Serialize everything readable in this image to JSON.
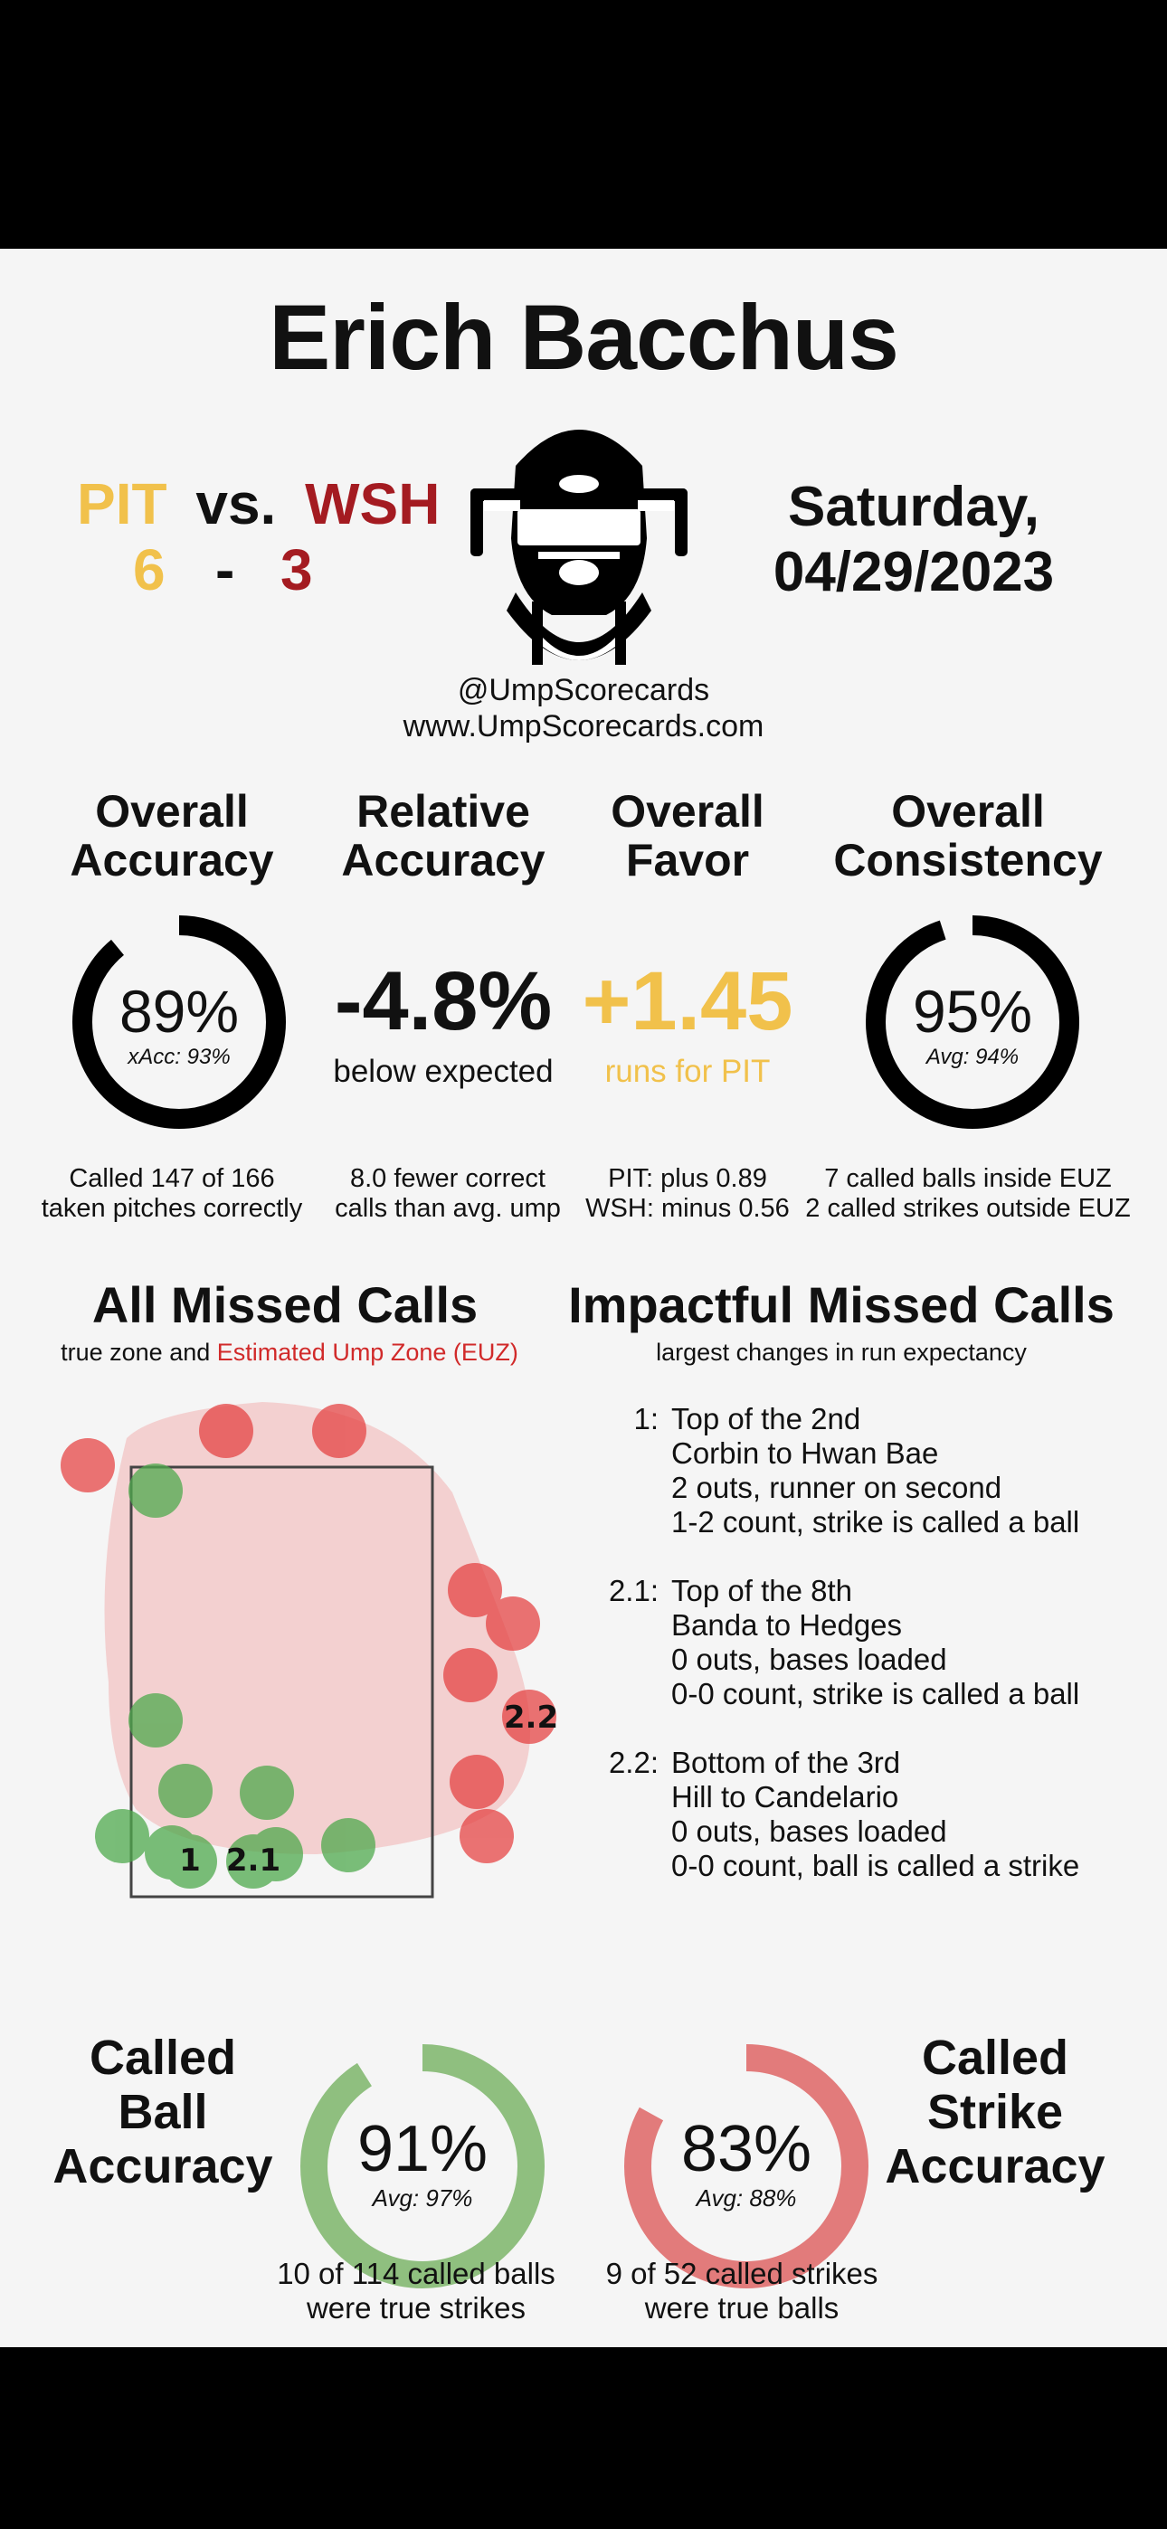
{
  "umpire": "Erich Bacchus",
  "game": {
    "away_team": "PIT",
    "vs": "vs.",
    "home_team": "WSH",
    "away_score": "6",
    "dash": "-",
    "home_score": "3",
    "day": "Saturday,",
    "date": "04/29/2023"
  },
  "handle": "@UmpScorecards",
  "website": "www.UmpScorecards.com",
  "colors": {
    "pit": "#f1c14b",
    "wsh": "#a41b21",
    "ball_ring": "#8fbf7f",
    "strike_ring": "#e27b7b"
  },
  "stats": {
    "overall_accuracy": {
      "title1": "Overall",
      "title2": "Accuracy",
      "value": "89%",
      "sub": "xAcc: 93%",
      "fraction": 0.89,
      "note1": "Called 147 of 166",
      "note2": "taken pitches correctly"
    },
    "relative_accuracy": {
      "title1": "Relative",
      "title2": "Accuracy",
      "value": "-4.8%",
      "sub": "below expected",
      "note1": "8.0 fewer correct",
      "note2": "calls than avg. ump"
    },
    "overall_favor": {
      "title1": "Overall",
      "title2": "Favor",
      "value": "+1.45",
      "sub": "runs for PIT",
      "note1": "PIT: plus 0.89",
      "note2": "WSH: minus 0.56"
    },
    "overall_consistency": {
      "title1": "Overall",
      "title2": "Consistency",
      "value": "95%",
      "sub": "Avg: 94%",
      "fraction": 0.95,
      "note1": "7 called balls inside EUZ",
      "note2": "2 called strikes outside EUZ"
    }
  },
  "missed": {
    "title": "All Missed Calls",
    "sub_prefix": "true zone and",
    "sub_euz": "Estimated Ump Zone (EUZ)",
    "labels": {
      "l1": "1",
      "l21": "2.1",
      "l22": "2.2"
    }
  },
  "impactful": {
    "title": "Impactful Missed Calls",
    "sub": "largest changes in run expectancy",
    "calls": [
      {
        "num": "1:",
        "lines": [
          "Top of the 2nd",
          "Corbin to Hwan Bae",
          "2 outs, runner on second",
          "1-2 count, strike is called a ball"
        ]
      },
      {
        "num": "2.1:",
        "lines": [
          "Top of the 8th",
          "Banda to Hedges",
          "0 outs, bases loaded",
          "0-0 count, strike is called a ball"
        ]
      },
      {
        "num": "2.2:",
        "lines": [
          "Bottom of the 3rd",
          "Hill to Candelario",
          "0 outs, bases loaded",
          "0-0 count, ball is called a strike"
        ]
      }
    ]
  },
  "ball_acc": {
    "t1": "Called",
    "t2": "Ball",
    "t3": "Accuracy",
    "value": "91%",
    "sub": "Avg: 97%",
    "fraction": 0.91,
    "note1": "10 of 114 called balls",
    "note2": "were true strikes"
  },
  "strike_acc": {
    "t1": "Called",
    "t2": "Strike",
    "t3": "Accuracy",
    "value": "83%",
    "sub": "Avg: 88%",
    "fraction": 0.83,
    "note1": "9 of 52 called strikes",
    "note2": "were true balls"
  }
}
